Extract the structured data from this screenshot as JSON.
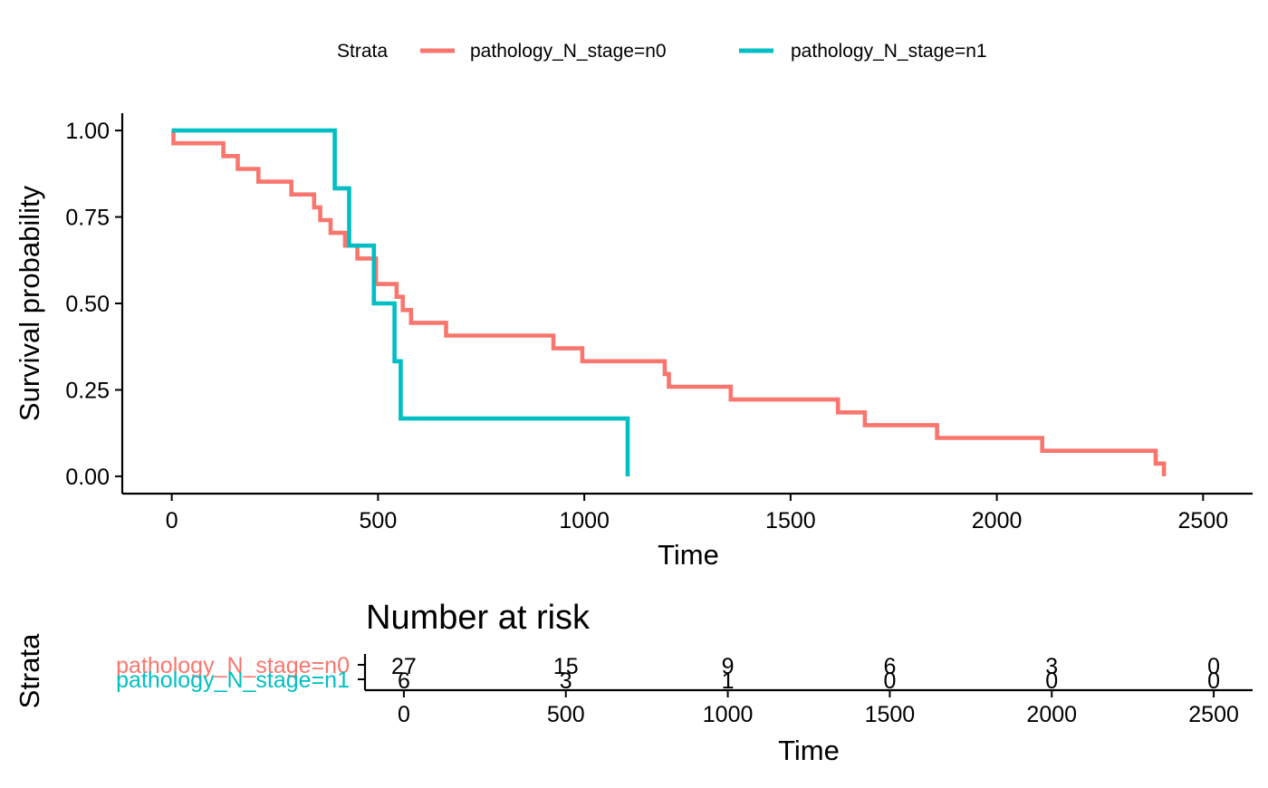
{
  "chart_data": [
    {
      "type": "line",
      "subtype": "step",
      "xlabel": "Time",
      "ylabel": "Survival probability",
      "xlim": [
        -120,
        2620
      ],
      "ylim": [
        -0.05,
        1.05
      ],
      "x_ticks": [
        0,
        500,
        1000,
        1500,
        2000,
        2500
      ],
      "y_ticks": [
        0,
        0.25,
        0.5,
        0.75,
        1.0
      ],
      "x_tick_labels": [
        "0",
        "500",
        "1000",
        "1500",
        "2000",
        "2500"
      ],
      "y_tick_labels": [
        "0.00",
        "0.25",
        "0.50",
        "0.75",
        "1.00"
      ],
      "grid": false,
      "legend": {
        "title": "Strata",
        "position": "top",
        "entries": [
          "pathology_N_stage=n0",
          "pathology_N_stage=n1"
        ]
      },
      "series": [
        {
          "name": "pathology_N_stage=n0",
          "color": "#F8766D",
          "x": [
            0,
            4,
            125,
            160,
            210,
            290,
            345,
            360,
            385,
            420,
            450,
            495,
            545,
            560,
            580,
            665,
            925,
            995,
            1195,
            1205,
            1355,
            1615,
            1680,
            1855,
            2110,
            2385,
            2405
          ],
          "y": [
            1.0,
            0.963,
            0.926,
            0.889,
            0.852,
            0.815,
            0.778,
            0.741,
            0.704,
            0.667,
            0.63,
            0.556,
            0.519,
            0.481,
            0.444,
            0.407,
            0.37,
            0.333,
            0.296,
            0.259,
            0.222,
            0.185,
            0.148,
            0.111,
            0.074,
            0.037,
            0.0
          ]
        },
        {
          "name": "pathology_N_stage=n1",
          "color": "#00BFC4",
          "x": [
            0,
            395,
            430,
            490,
            540,
            555,
            1105
          ],
          "y": [
            1.0,
            0.833,
            0.667,
            0.5,
            0.333,
            0.167,
            0.0
          ]
        }
      ]
    },
    {
      "type": "table",
      "title": "Number at risk",
      "xlabel": "Time",
      "ylabel": "Strata",
      "xlim": [
        -120,
        2620
      ],
      "x_ticks": [
        0,
        500,
        1000,
        1500,
        2000,
        2500
      ],
      "x_tick_labels": [
        "0",
        "500",
        "1000",
        "1500",
        "2000",
        "2500"
      ],
      "rows": [
        {
          "name": "pathology_N_stage=n0",
          "color": "#F8766D",
          "values": [
            27,
            15,
            9,
            6,
            3,
            0
          ]
        },
        {
          "name": "pathology_N_stage=n1",
          "color": "#00BFC4",
          "values": [
            6,
            3,
            1,
            0,
            0,
            0
          ]
        }
      ]
    }
  ]
}
